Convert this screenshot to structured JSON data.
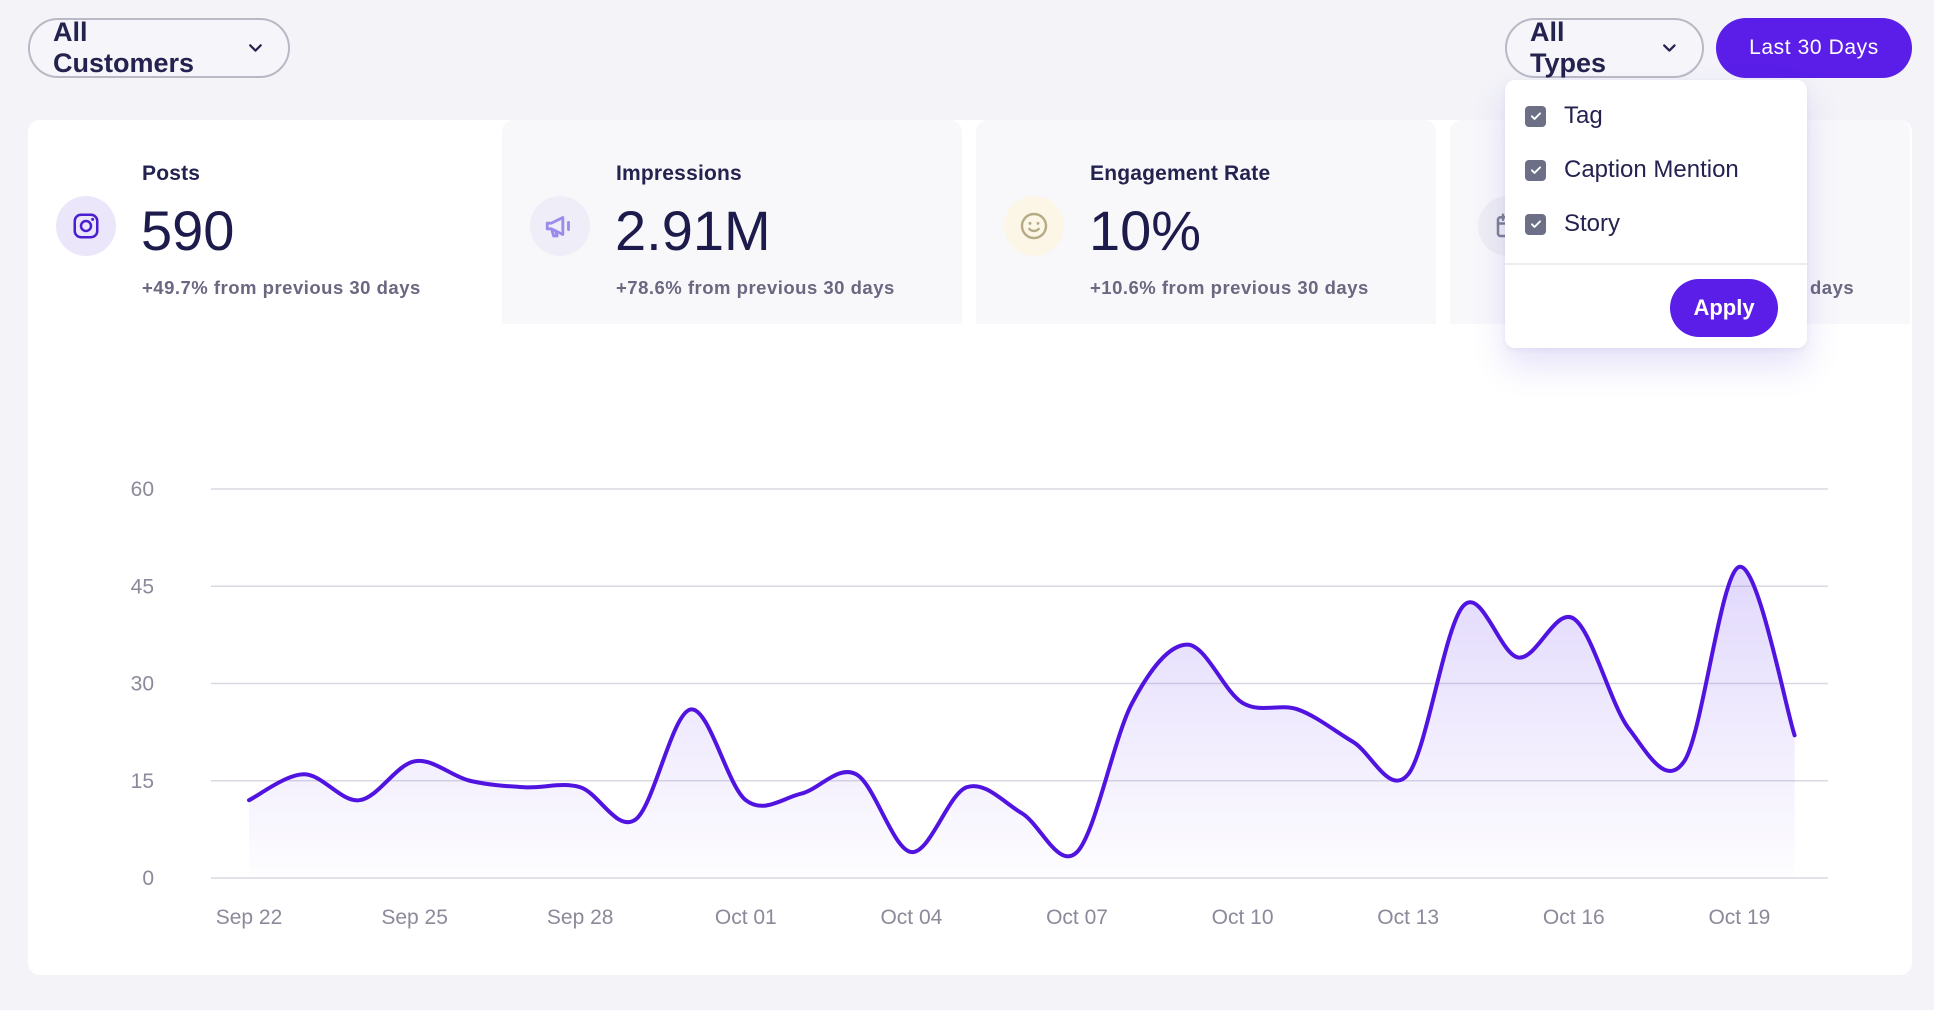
{
  "filters": {
    "customers_label": "All Customers",
    "types_label": "All Types",
    "date_range_label": "Last 30 Days"
  },
  "stats": [
    {
      "label": "Posts",
      "value": "590",
      "change": "+49.7% from previous 30 days",
      "icon": "instagram-icon"
    },
    {
      "label": "Impressions",
      "value": "2.91M",
      "change": "+78.6% from previous 30 days",
      "icon": "megaphone-icon"
    },
    {
      "label": "Engagement Rate",
      "value": "10%",
      "change": "+10.6% from previous 30 days",
      "icon": "smiley-icon"
    },
    {
      "label": "",
      "value": "",
      "change": "days",
      "icon": "calendar-icon"
    }
  ],
  "type_dropdown": {
    "options": [
      {
        "label": "Tag",
        "checked": true
      },
      {
        "label": "Caption Mention",
        "checked": true
      },
      {
        "label": "Story",
        "checked": true
      }
    ],
    "apply_label": "Apply"
  },
  "colors": {
    "accent": "#5a1ee8",
    "background": "#f3f3f8",
    "text": "#1d1b4b",
    "muted": "#6a6880"
  },
  "chart_data": {
    "type": "area",
    "x": [
      "Sep 22",
      "Sep 23",
      "Sep 24",
      "Sep 25",
      "Sep 26",
      "Sep 27",
      "Sep 28",
      "Sep 29",
      "Sep 30",
      "Oct 01",
      "Oct 02",
      "Oct 03",
      "Oct 04",
      "Oct 05",
      "Oct 06",
      "Oct 07",
      "Oct 08",
      "Oct 09",
      "Oct 10",
      "Oct 11",
      "Oct 12",
      "Oct 13",
      "Oct 14",
      "Oct 15",
      "Oct 16",
      "Oct 17",
      "Oct 18",
      "Oct 19",
      "Oct 20"
    ],
    "tick_labels": [
      "Sep 22",
      "Sep 25",
      "Sep 28",
      "Oct 01",
      "Oct 04",
      "Oct 07",
      "Oct 10",
      "Oct 13",
      "Oct 16",
      "Oct 19"
    ],
    "series": [
      {
        "values": [
          12,
          16,
          12,
          18,
          15,
          14,
          14,
          9,
          26,
          12,
          13,
          16,
          4,
          14,
          10,
          4,
          27,
          36,
          27,
          26,
          21,
          16,
          42,
          34,
          40,
          23,
          18,
          48,
          22
        ]
      }
    ],
    "yticks": [
      0,
      15,
      30,
      45,
      60
    ],
    "ylim": [
      0,
      60
    ],
    "grid": true,
    "title": "",
    "xlabel": "",
    "ylabel": ""
  }
}
